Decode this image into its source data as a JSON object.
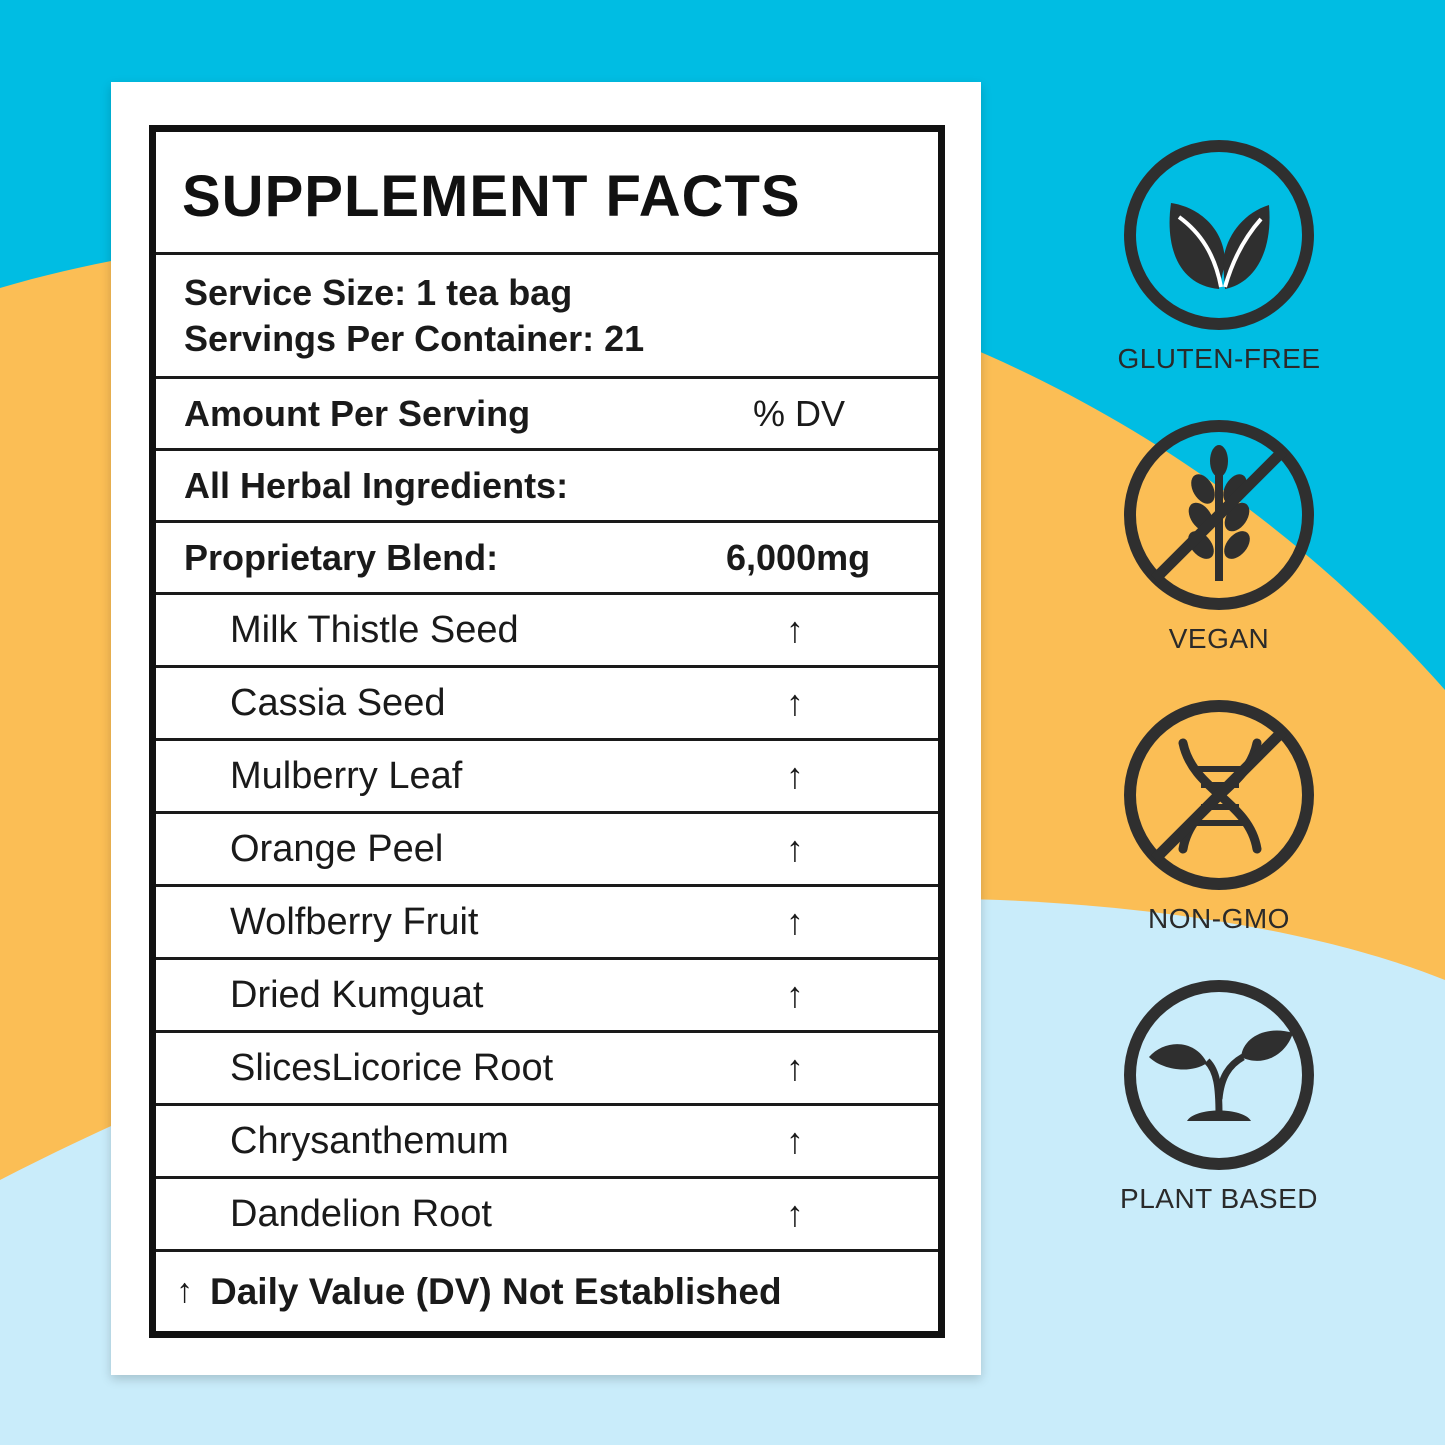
{
  "colors": {
    "sky_blue": "#00bde3",
    "orange": "#fbbe55",
    "light_blue": "#c9ecfa",
    "ink": "#2f2f2f"
  },
  "label": {
    "title": "SUPPLEMENT FACTS",
    "serving_size": "Service Size: 1 tea bag",
    "servings_per_container": "Servings Per Container: 21",
    "amount_per_serving": "Amount Per Serving",
    "dv_header": "% DV",
    "herbal_ingredients": "All Herbal Ingredients:",
    "blend_label": "Proprietary Blend:",
    "blend_amount": "6,000mg",
    "ingredients": [
      {
        "name": "Milk Thistle Seed",
        "mark": "↑"
      },
      {
        "name": "Cassia Seed",
        "mark": "↑"
      },
      {
        "name": "Mulberry Leaf",
        "mark": "↑"
      },
      {
        "name": "Orange Peel",
        "mark": "↑"
      },
      {
        "name": "Wolfberry Fruit",
        "mark": "↑"
      },
      {
        "name": "Dried Kumguat",
        "mark": "↑"
      },
      {
        "name": "SlicesLicorice Root",
        "mark": "↑"
      },
      {
        "name": "Chrysanthemum",
        "mark": "↑"
      },
      {
        "name": "Dandelion Root",
        "mark": "↑"
      }
    ],
    "footnote_mark": "↑",
    "footnote": "Daily Value (DV) Not Established"
  },
  "badges": [
    {
      "icon": "leaf-icon",
      "label": "GLUTEN-FREE"
    },
    {
      "icon": "no-wheat-icon",
      "label": "VEGAN"
    },
    {
      "icon": "no-dna-icon",
      "label": "NON-GMO"
    },
    {
      "icon": "sprout-icon",
      "label": "PLANT BASED"
    }
  ]
}
